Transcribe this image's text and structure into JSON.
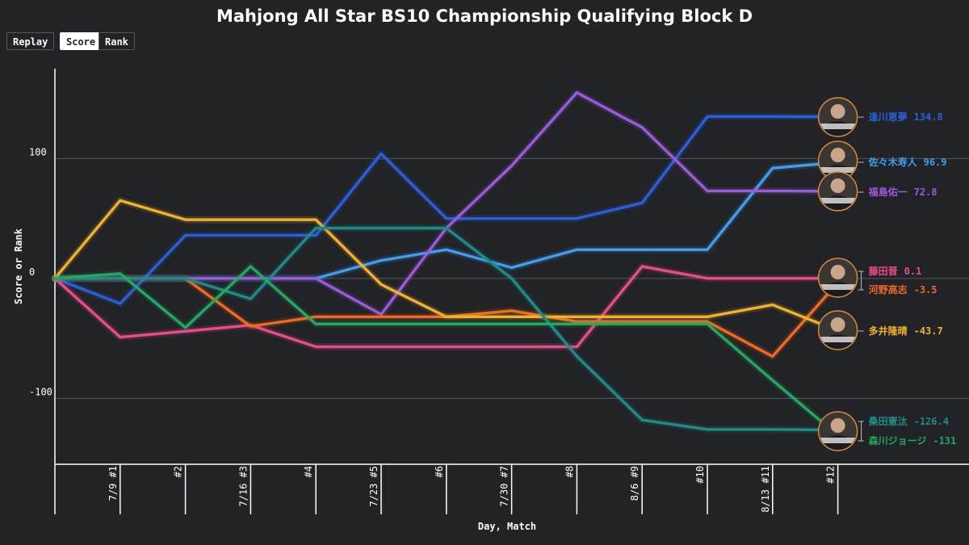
{
  "title": "Mahjong All Star BS10 Championship Qualifying Block D",
  "controls": {
    "replay_label": "Replay",
    "score_label": "Score",
    "rank_label": "Rank",
    "active": "score"
  },
  "chart_data": {
    "type": "line",
    "title": "Mahjong All Star BS10 Championship Qualifying Block D",
    "xlabel": "Day, Match",
    "ylabel": "Score or Rank",
    "ylim": [
      -155,
      175
    ],
    "yticks": [
      {
        "value": 100,
        "label": "100"
      },
      {
        "value": 0,
        "label": "0"
      },
      {
        "value": -100,
        "label": "-100"
      }
    ],
    "grid": true,
    "categories": [
      "",
      "7/9 #1",
      "#2",
      "7/16 #3",
      "#4",
      "7/23 #5",
      "#6",
      "7/30 #7",
      "#8",
      "8/6 #9",
      "#10",
      "8/13 #11",
      "#12"
    ],
    "series": [
      {
        "name": "逢川恵夢",
        "final_label": "134.8",
        "color": "#2a5fdc",
        "values": [
          0,
          -21,
          36,
          36,
          36,
          104,
          50,
          50,
          50,
          63,
          135,
          135,
          134.8
        ]
      },
      {
        "name": "佐々木寿人",
        "final_label": "96.9",
        "color": "#3d9ef0",
        "values": [
          0,
          0,
          0,
          0,
          0,
          15,
          24,
          9,
          24,
          24,
          24,
          92,
          96.9
        ]
      },
      {
        "name": "福島佑一",
        "final_label": "72.8",
        "color": "#9b59dc",
        "values": [
          0,
          0,
          0,
          0,
          0,
          -30,
          42,
          94,
          155,
          126,
          73,
          73,
          72.8
        ]
      },
      {
        "name": "藤田晋",
        "final_label": "0.1",
        "color": "#e84b8a",
        "values": [
          0,
          -49,
          -44,
          -39,
          -57,
          -57,
          -57,
          -57,
          -57,
          10,
          0.1,
          0.1,
          0.1
        ]
      },
      {
        "name": "河野高志",
        "final_label": "-3.5",
        "color": "#f06a1e",
        "values": [
          0,
          0,
          0,
          -40,
          -32,
          -32,
          -32,
          -27,
          -36,
          -36,
          -36,
          -65,
          -3.5
        ]
      },
      {
        "name": "多井隆晴",
        "final_label": "-43.7",
        "color": "#f2b02a",
        "values": [
          0,
          65,
          49,
          49,
          49,
          -5,
          -32,
          -32,
          -32,
          -32,
          -32,
          -22,
          -43.7
        ]
      },
      {
        "name": "桑田憲汰",
        "final_label": "-126.4",
        "color": "#1f8a8a",
        "values": [
          0,
          0,
          0,
          -17,
          42,
          42,
          42,
          0,
          -65,
          -118,
          -126,
          -126,
          -126.4
        ]
      },
      {
        "name": "森川ジョージ",
        "final_label": "-131",
        "color": "#22a860",
        "values": [
          0,
          4,
          -41,
          10,
          -38,
          -38,
          -38,
          -38,
          -38,
          -38,
          -38,
          -85,
          -131
        ]
      }
    ]
  }
}
